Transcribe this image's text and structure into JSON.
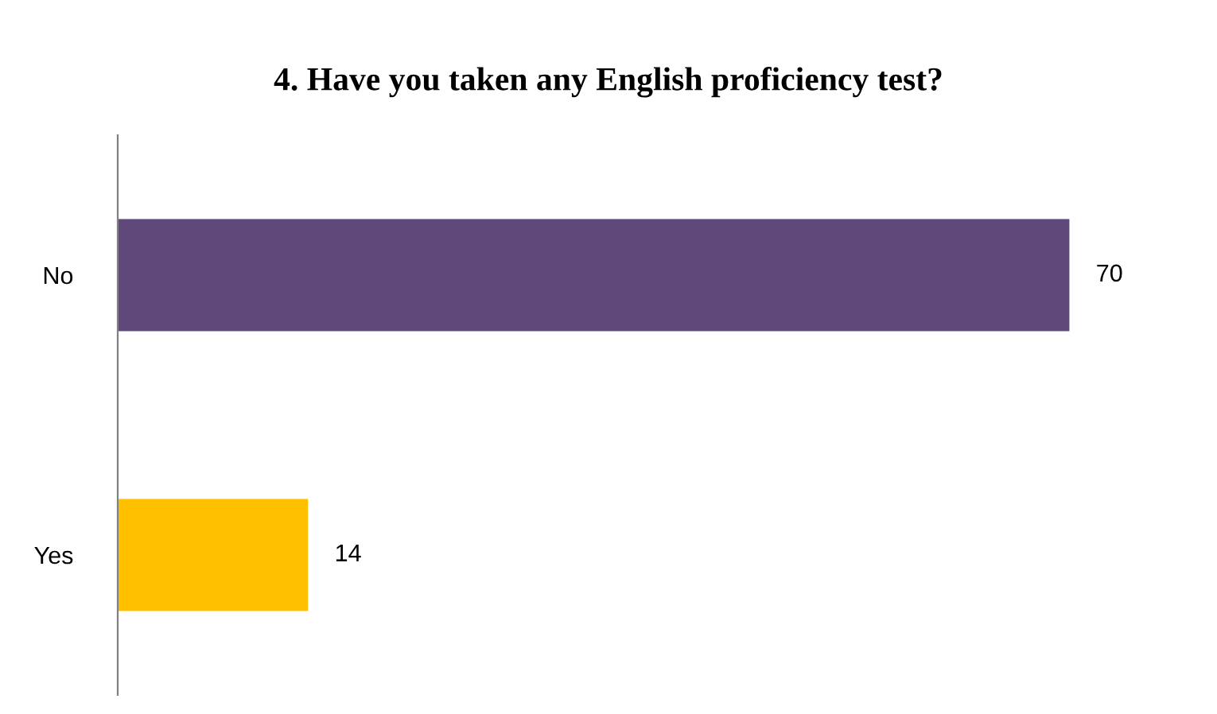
{
  "chart_data": {
    "type": "bar",
    "orientation": "horizontal",
    "title": "4. Have you taken any English proficiency test?",
    "categories": [
      "No",
      "Yes"
    ],
    "values": [
      70,
      14
    ],
    "colors": [
      "#5f497a",
      "#ffc000"
    ],
    "data_labels": true,
    "grid": false,
    "legend": false
  }
}
